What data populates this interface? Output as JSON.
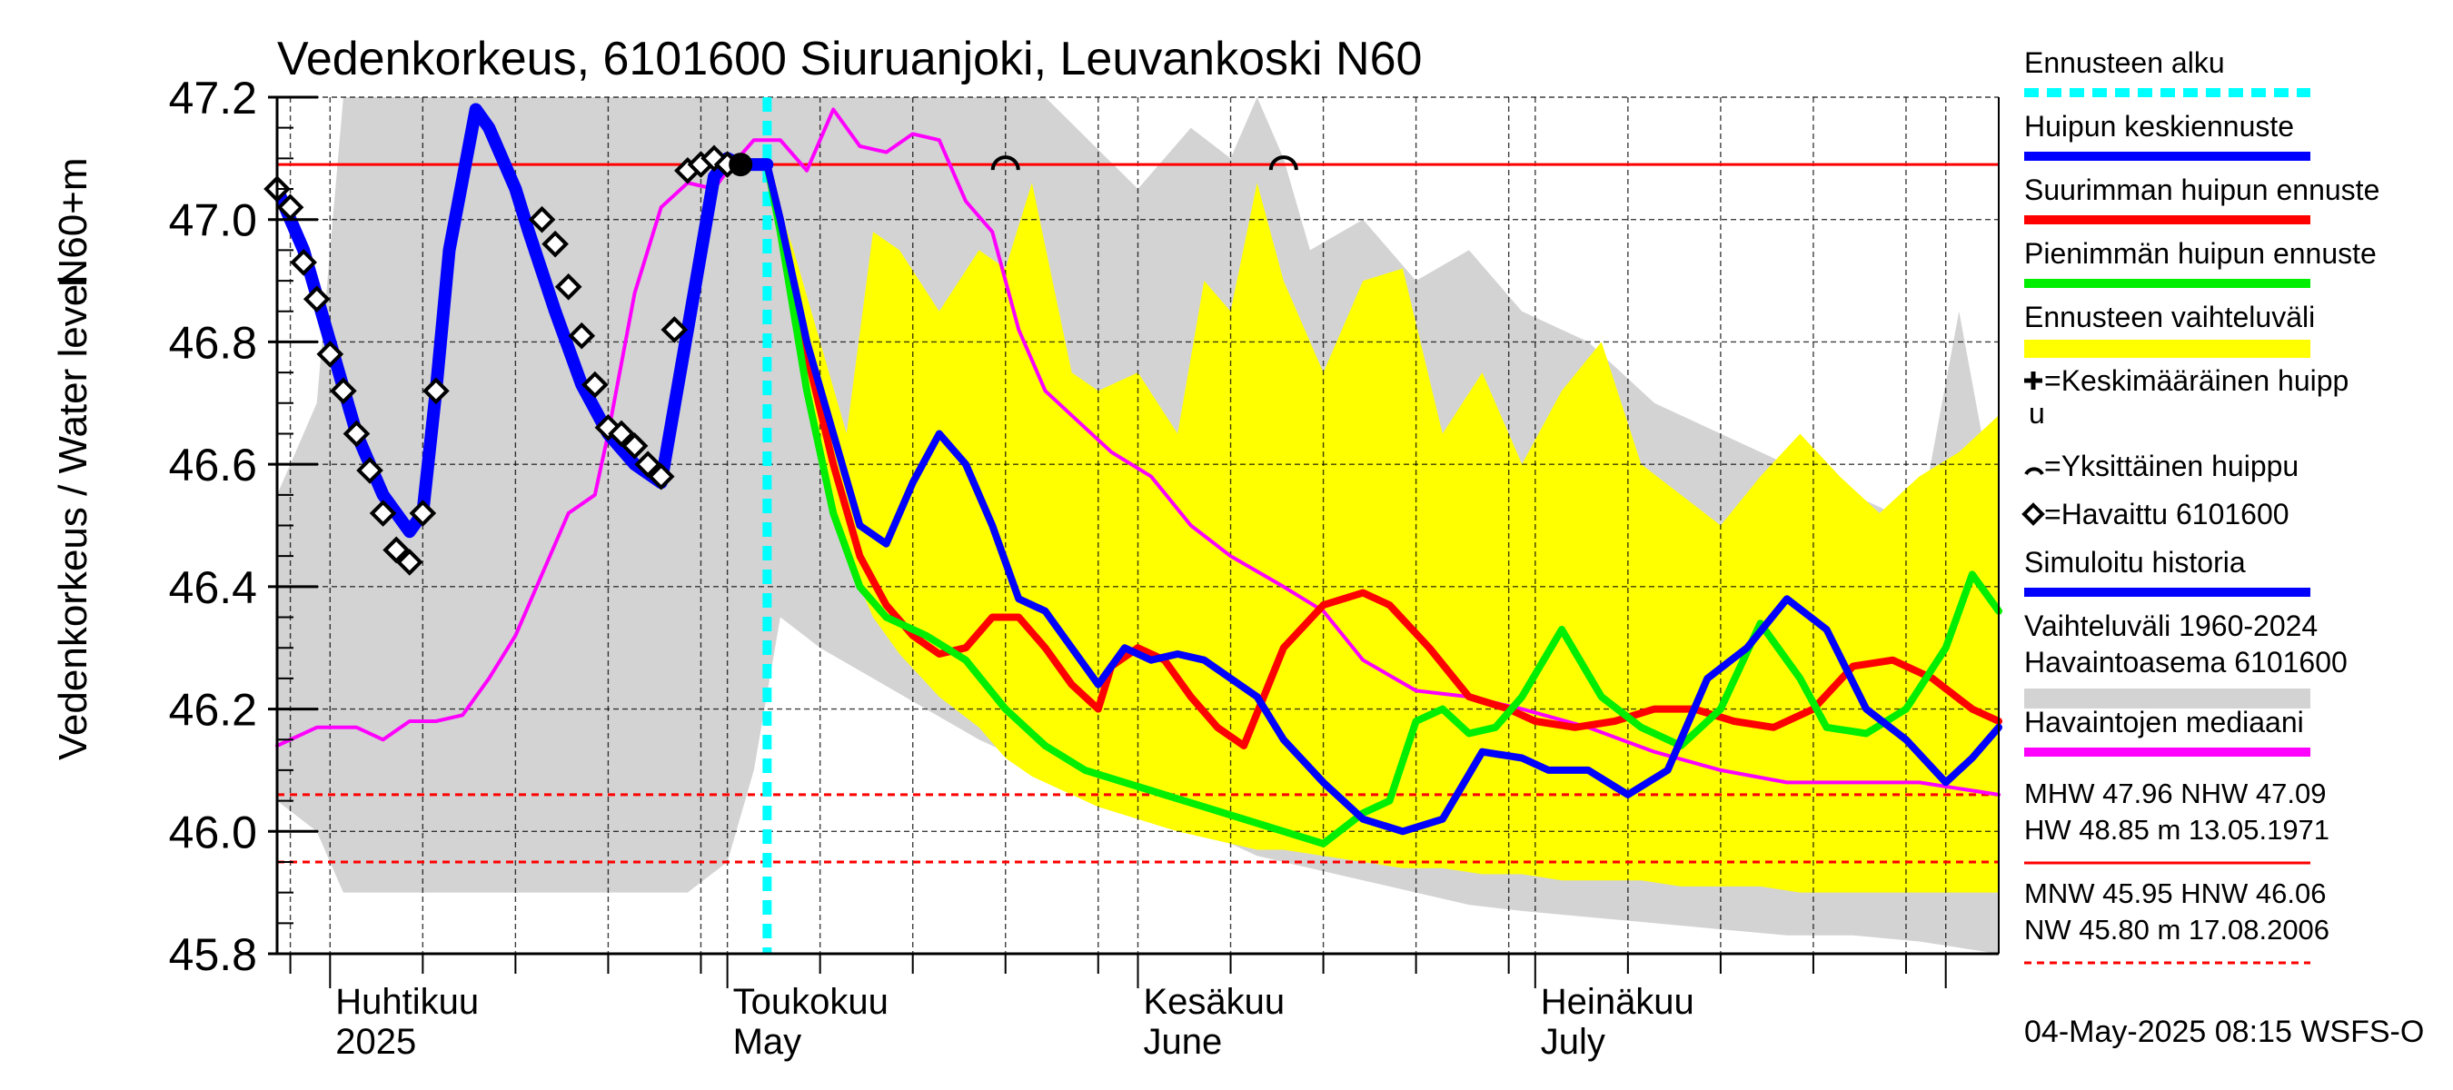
{
  "chart_data": {
    "type": "line",
    "title": "Vedenkorkeus, 6101600 Siuruanjoki, Leuvankoski N60",
    "ylabel_main": "Vedenkorkeus / Water level",
    "ylabel_unit": "N60+m",
    "ylim": [
      45.8,
      47.2
    ],
    "yticks": [
      "45.8",
      "46.0",
      "46.2",
      "46.4",
      "46.6",
      "46.8",
      "47.0",
      "47.2"
    ],
    "x_range": [
      "2025-03-28",
      "2025-08-05"
    ],
    "grid": true,
    "month_labels": [
      {
        "fi": "Huhtikuu",
        "en": "2025",
        "date": "2025-04-01"
      },
      {
        "fi": "Toukokuu",
        "en": "May",
        "date": "2025-05-01"
      },
      {
        "fi": "Kesäkuu",
        "en": "June",
        "date": "2025-06-01"
      },
      {
        "fi": "Heinäkuu",
        "en": "July",
        "date": "2025-07-01"
      }
    ],
    "forecast_start": "2025-05-04",
    "reference_lines": [
      {
        "name": "NHW",
        "value": 47.09,
        "color": "#ff0000",
        "style": "solid"
      },
      {
        "name": "HNW",
        "value": 46.06,
        "color": "#ff0000",
        "style": "dashed"
      },
      {
        "name": "MNW",
        "value": 45.95,
        "color": "#ff0000",
        "style": "dashed"
      }
    ],
    "series": [
      {
        "name": "Vaihteluväli 1960-2024 Havaintoasema 6101600",
        "kind": "band",
        "color": "#d3d3d3",
        "x": [
          "2025-03-28",
          "2025-03-31",
          "2025-04-02",
          "2025-04-04",
          "2025-04-07",
          "2025-04-10",
          "2025-04-15",
          "2025-04-20",
          "2025-04-25",
          "2025-04-28",
          "2025-05-01",
          "2025-05-03",
          "2025-05-05",
          "2025-05-08",
          "2025-05-12",
          "2025-05-16",
          "2025-05-20",
          "2025-05-25",
          "2025-06-01",
          "2025-06-05",
          "2025-06-08",
          "2025-06-10",
          "2025-06-12",
          "2025-06-14",
          "2025-06-18",
          "2025-06-22",
          "2025-06-26",
          "2025-06-30",
          "2025-07-05",
          "2025-07-10",
          "2025-07-15",
          "2025-07-20",
          "2025-07-25",
          "2025-07-30",
          "2025-08-02",
          "2025-08-05"
        ],
        "upper": [
          46.55,
          46.7,
          47.2,
          47.2,
          47.2,
          47.2,
          47.2,
          47.2,
          47.2,
          47.2,
          47.2,
          47.2,
          47.2,
          47.2,
          47.2,
          47.2,
          47.2,
          47.2,
          47.05,
          47.15,
          47.1,
          47.2,
          47.1,
          46.95,
          47.0,
          46.9,
          46.95,
          46.85,
          46.8,
          46.7,
          46.65,
          46.6,
          46.55,
          46.5,
          46.85,
          46.5
        ],
        "lower": [
          46.05,
          46.0,
          45.9,
          45.9,
          45.9,
          45.9,
          45.9,
          45.9,
          45.9,
          45.9,
          45.95,
          46.1,
          46.35,
          46.3,
          46.25,
          46.2,
          46.15,
          46.1,
          46.05,
          46.0,
          45.98,
          45.96,
          45.95,
          45.94,
          45.92,
          45.9,
          45.88,
          45.87,
          45.86,
          45.85,
          45.84,
          45.83,
          45.83,
          45.82,
          45.81,
          45.8
        ]
      },
      {
        "name": "Ennusteen vaihteluväli",
        "kind": "band",
        "color": "#ffff00",
        "x": [
          "2025-05-04",
          "2025-05-06",
          "2025-05-08",
          "2025-05-10",
          "2025-05-12",
          "2025-05-14",
          "2025-05-17",
          "2025-05-20",
          "2025-05-22",
          "2025-05-24",
          "2025-05-27",
          "2025-05-29",
          "2025-06-01",
          "2025-06-04",
          "2025-06-06",
          "2025-06-08",
          "2025-06-10",
          "2025-06-12",
          "2025-06-15",
          "2025-06-18",
          "2025-06-21",
          "2025-06-24",
          "2025-06-27",
          "2025-06-30",
          "2025-07-03",
          "2025-07-06",
          "2025-07-09",
          "2025-07-12",
          "2025-07-15",
          "2025-07-18",
          "2025-07-21",
          "2025-07-24",
          "2025-07-27",
          "2025-07-30",
          "2025-08-02",
          "2025-08-05"
        ],
        "upper": [
          47.08,
          46.95,
          46.8,
          46.65,
          46.98,
          46.95,
          46.85,
          46.95,
          46.92,
          47.06,
          46.75,
          46.72,
          46.75,
          46.65,
          46.9,
          46.85,
          47.06,
          46.9,
          46.75,
          46.9,
          46.92,
          46.65,
          46.75,
          46.6,
          46.72,
          46.8,
          46.6,
          46.55,
          46.5,
          46.58,
          46.65,
          46.58,
          46.52,
          46.58,
          46.62,
          46.68
        ],
        "lower": [
          47.08,
          46.85,
          46.62,
          46.45,
          46.35,
          46.29,
          46.22,
          46.17,
          46.12,
          46.09,
          46.06,
          46.04,
          46.02,
          46.0,
          45.99,
          45.98,
          45.97,
          45.97,
          45.96,
          45.95,
          45.94,
          45.94,
          45.93,
          45.93,
          45.92,
          45.92,
          45.92,
          45.91,
          45.91,
          45.91,
          45.9,
          45.9,
          45.9,
          45.9,
          45.9,
          45.9
        ]
      },
      {
        "name": "Havaintojen mediaani",
        "kind": "line",
        "color": "#ff00ff",
        "x": [
          "2025-03-28",
          "2025-03-31",
          "2025-04-03",
          "2025-04-05",
          "2025-04-07",
          "2025-04-09",
          "2025-04-11",
          "2025-04-13",
          "2025-04-15",
          "2025-04-17",
          "2025-04-19",
          "2025-04-21",
          "2025-04-22",
          "2025-04-24",
          "2025-04-26",
          "2025-04-28",
          "2025-04-30",
          "2025-05-01",
          "2025-05-03",
          "2025-05-05",
          "2025-05-07",
          "2025-05-09",
          "2025-05-11",
          "2025-05-13",
          "2025-05-15",
          "2025-05-17",
          "2025-05-19",
          "2025-05-21",
          "2025-05-23",
          "2025-05-25",
          "2025-05-27",
          "2025-05-30",
          "2025-06-02",
          "2025-06-05",
          "2025-06-08",
          "2025-06-12",
          "2025-06-15",
          "2025-06-18",
          "2025-06-22",
          "2025-06-26",
          "2025-06-30",
          "2025-07-05",
          "2025-07-10",
          "2025-07-15",
          "2025-07-20",
          "2025-07-25",
          "2025-07-30",
          "2025-08-05"
        ],
        "y": [
          46.14,
          46.17,
          46.17,
          46.15,
          46.18,
          46.18,
          46.19,
          46.25,
          46.32,
          46.42,
          46.52,
          46.55,
          46.65,
          46.88,
          47.02,
          47.06,
          47.05,
          47.08,
          47.13,
          47.13,
          47.08,
          47.18,
          47.12,
          47.11,
          47.14,
          47.13,
          47.03,
          46.98,
          46.82,
          46.72,
          46.68,
          46.62,
          46.58,
          46.5,
          46.45,
          46.4,
          46.36,
          46.28,
          46.23,
          46.22,
          46.2,
          46.17,
          46.13,
          46.1,
          46.08,
          46.08,
          46.08,
          46.06
        ]
      },
      {
        "name": "Suurimman huipun ennuste",
        "kind": "line",
        "color": "#ff0000",
        "x": [
          "2025-05-04",
          "2025-05-05",
          "2025-05-07",
          "2025-05-09",
          "2025-05-11",
          "2025-05-13",
          "2025-05-15",
          "2025-05-17",
          "2025-05-19",
          "2025-05-21",
          "2025-05-23",
          "2025-05-25",
          "2025-05-27",
          "2025-05-29",
          "2025-05-30",
          "2025-06-01",
          "2025-06-03",
          "2025-06-05",
          "2025-06-07",
          "2025-06-09",
          "2025-06-12",
          "2025-06-15",
          "2025-06-18",
          "2025-06-20",
          "2025-06-23",
          "2025-06-26",
          "2025-06-29",
          "2025-07-01",
          "2025-07-04",
          "2025-07-07",
          "2025-07-10",
          "2025-07-13",
          "2025-07-16",
          "2025-07-19",
          "2025-07-22",
          "2025-07-25",
          "2025-07-28",
          "2025-07-31",
          "2025-08-03",
          "2025-08-05"
        ],
        "y": [
          47.09,
          47.0,
          46.78,
          46.6,
          46.45,
          46.37,
          46.32,
          46.29,
          46.3,
          46.35,
          46.35,
          46.3,
          46.24,
          46.2,
          46.27,
          46.3,
          46.28,
          46.22,
          46.17,
          46.14,
          46.3,
          46.37,
          46.39,
          46.37,
          46.3,
          46.22,
          46.2,
          46.18,
          46.17,
          46.18,
          46.2,
          46.2,
          46.18,
          46.17,
          46.2,
          46.27,
          46.28,
          46.25,
          46.2,
          46.18
        ]
      },
      {
        "name": "Pienimmän huipun ennuste",
        "kind": "line",
        "color": "#00ee00",
        "x": [
          "2025-05-04",
          "2025-05-05",
          "2025-05-07",
          "2025-05-09",
          "2025-05-11",
          "2025-05-13",
          "2025-05-16",
          "2025-05-19",
          "2025-05-22",
          "2025-05-25",
          "2025-05-28",
          "2025-05-31",
          "2025-06-03",
          "2025-06-06",
          "2025-06-09",
          "2025-06-12",
          "2025-06-15",
          "2025-06-18",
          "2025-06-20",
          "2025-06-22",
          "2025-06-24",
          "2025-06-26",
          "2025-06-28",
          "2025-06-30",
          "2025-07-03",
          "2025-07-06",
          "2025-07-09",
          "2025-07-12",
          "2025-07-15",
          "2025-07-18",
          "2025-07-21",
          "2025-07-23",
          "2025-07-26",
          "2025-07-29",
          "2025-08-01",
          "2025-08-03",
          "2025-08-05"
        ],
        "y": [
          47.09,
          46.98,
          46.72,
          46.52,
          46.4,
          46.35,
          46.32,
          46.28,
          46.2,
          46.14,
          46.1,
          46.08,
          46.06,
          46.04,
          46.02,
          46.0,
          45.98,
          46.03,
          46.05,
          46.18,
          46.2,
          46.16,
          46.17,
          46.22,
          46.33,
          46.22,
          46.17,
          46.14,
          46.2,
          46.34,
          46.25,
          46.17,
          46.16,
          46.2,
          46.3,
          46.42,
          46.36
        ]
      },
      {
        "name": "Huipun keskiennuste",
        "kind": "line",
        "color": "#0000ff",
        "x": [
          "2025-05-04",
          "2025-05-05",
          "2025-05-07",
          "2025-05-09",
          "2025-05-11",
          "2025-05-13",
          "2025-05-15",
          "2025-05-17",
          "2025-05-19",
          "2025-05-21",
          "2025-05-23",
          "2025-05-25",
          "2025-05-27",
          "2025-05-29",
          "2025-05-31",
          "2025-06-02",
          "2025-06-04",
          "2025-06-06",
          "2025-06-08",
          "2025-06-10",
          "2025-06-12",
          "2025-06-15",
          "2025-06-18",
          "2025-06-21",
          "2025-06-24",
          "2025-06-27",
          "2025-06-30",
          "2025-07-02",
          "2025-07-05",
          "2025-07-08",
          "2025-07-11",
          "2025-07-14",
          "2025-07-17",
          "2025-07-20",
          "2025-07-23",
          "2025-07-26",
          "2025-07-29",
          "2025-08-01",
          "2025-08-03",
          "2025-08-05"
        ],
        "y": [
          47.09,
          47.0,
          46.8,
          46.65,
          46.5,
          46.47,
          46.57,
          46.65,
          46.6,
          46.5,
          46.38,
          46.36,
          46.3,
          46.24,
          46.3,
          46.28,
          46.29,
          46.28,
          46.25,
          46.22,
          46.15,
          46.08,
          46.02,
          46.0,
          46.02,
          46.13,
          46.12,
          46.1,
          46.1,
          46.06,
          46.1,
          46.25,
          46.3,
          46.38,
          46.33,
          46.2,
          46.15,
          46.08,
          46.12,
          46.17
        ]
      },
      {
        "name": "Simuloitu historia",
        "kind": "line",
        "color": "#0000ff",
        "x": [
          "2025-03-28",
          "2025-03-30",
          "2025-04-01",
          "2025-04-03",
          "2025-04-05",
          "2025-04-07",
          "2025-04-08",
          "2025-04-09",
          "2025-04-10",
          "2025-04-12",
          "2025-04-13",
          "2025-04-15",
          "2025-04-16",
          "2025-04-18",
          "2025-04-20",
          "2025-04-22",
          "2025-04-24",
          "2025-04-26",
          "2025-04-28",
          "2025-04-30",
          "2025-05-01",
          "2025-05-02",
          "2025-05-03",
          "2025-05-04"
        ],
        "y": [
          47.05,
          46.95,
          46.8,
          46.65,
          46.55,
          46.49,
          46.52,
          46.72,
          46.95,
          47.18,
          47.15,
          47.05,
          46.98,
          46.85,
          46.73,
          46.65,
          46.6,
          46.57,
          46.82,
          47.07,
          47.1,
          47.09,
          47.09,
          47.09
        ]
      },
      {
        "name": "Havaittu 6101600",
        "kind": "markers",
        "color": "#000000",
        "x": [
          "2025-03-28",
          "2025-03-29",
          "2025-03-30",
          "2025-03-31",
          "2025-04-01",
          "2025-04-02",
          "2025-04-03",
          "2025-04-04",
          "2025-04-05",
          "2025-04-06",
          "2025-04-06",
          "2025-04-07",
          "2025-04-08",
          "2025-04-09",
          "2025-04-17",
          "2025-04-18",
          "2025-04-19",
          "2025-04-20",
          "2025-04-21",
          "2025-04-22",
          "2025-04-23",
          "2025-04-24",
          "2025-04-25",
          "2025-04-26",
          "2025-04-27",
          "2025-04-28",
          "2025-04-29",
          "2025-04-30",
          "2025-05-01"
        ],
        "y": [
          47.05,
          47.02,
          46.93,
          46.87,
          46.78,
          46.72,
          46.65,
          46.59,
          46.52,
          46.46,
          46.46,
          46.44,
          46.52,
          46.72,
          47.0,
          46.96,
          46.89,
          46.81,
          46.73,
          46.66,
          46.65,
          46.63,
          46.6,
          46.58,
          46.82,
          47.08,
          47.09,
          47.1,
          47.09
        ]
      },
      {
        "name": "Yksittäinen huippu",
        "kind": "peaks",
        "color": "#000000",
        "x": [
          "2025-05-22",
          "2025-06-12"
        ],
        "y": [
          47.09,
          47.09
        ]
      },
      {
        "name": "Keskimääräinen huippu",
        "kind": "peak",
        "color": "#000000",
        "x": [
          "2025-05-02"
        ],
        "y": [
          47.09
        ]
      }
    ]
  },
  "legend": [
    {
      "label": "Ennusteen alku",
      "color": "#00ffff",
      "style": "dashed"
    },
    {
      "label": "Huipun keskiennuste",
      "color": "#0000ff",
      "style": "line"
    },
    {
      "label": "Suurimman huipun ennuste",
      "color": "#ff0000",
      "style": "line"
    },
    {
      "label": "Pienimmän huipun ennuste",
      "color": "#00ee00",
      "style": "line"
    },
    {
      "label": "Ennusteen vaihteluväli",
      "color": "#ffff00",
      "style": "band"
    },
    {
      "label": "=Keskimääräinen huipp",
      "label2": "u",
      "symbol": "plus"
    },
    {
      "label": "=Yksittäinen huippu",
      "symbol": "arc"
    },
    {
      "label": "=Havaittu 6101600",
      "symbol": "diamond"
    },
    {
      "label": "Simuloitu historia",
      "color": "#0000ff",
      "style": "line"
    },
    {
      "label": "Vaihteluväli 1960-2024",
      "label2": " Havaintoasema 6101600",
      "color": "#d3d3d3",
      "style": "band"
    },
    {
      "label": "Havaintojen mediaani",
      "color": "#ff00ff",
      "style": "line"
    }
  ],
  "stats": [
    {
      "line1": "MHW  47.96 NHW  47.09",
      "line2": "HW  48.85 m 13.05.1971",
      "style": "solid"
    },
    {
      "line1": "MNW  45.95 HNW  46.06",
      "line2": "NW  45.80 m 17.08.2006",
      "style": "dashed"
    }
  ],
  "footer": "04-May-2025 08:15 WSFS-O",
  "colors": {
    "grid": "#000000",
    "reference": "#ff0000",
    "forecast_start": "#00ffff"
  }
}
